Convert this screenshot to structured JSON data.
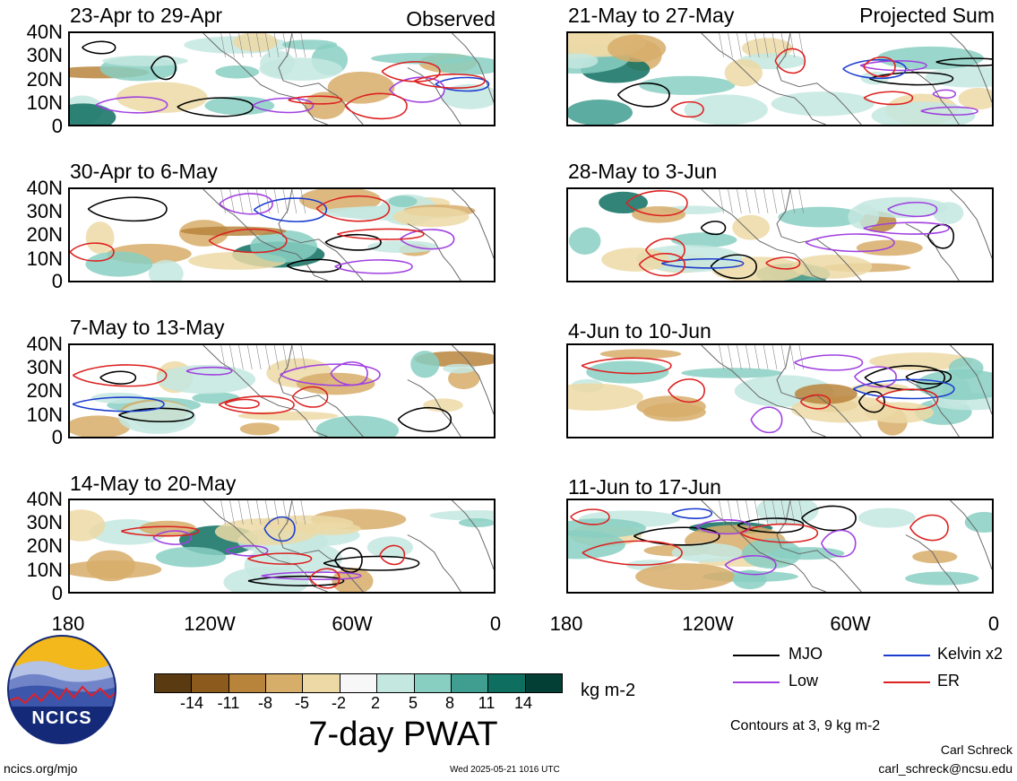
{
  "panels": [
    {
      "title": "23-Apr to 29-Apr",
      "right_label": "Observed"
    },
    {
      "title": "21-May to 27-May",
      "right_label": "Projected Sum"
    },
    {
      "title": "30-Apr to 6-May",
      "right_label": ""
    },
    {
      "title": "28-May to 3-Jun",
      "right_label": ""
    },
    {
      "title": "7-May to 13-May",
      "right_label": ""
    },
    {
      "title": "4-Jun to 10-Jun",
      "right_label": ""
    },
    {
      "title": "14-May to 20-May",
      "right_label": ""
    },
    {
      "title": "11-Jun to 17-Jun",
      "right_label": ""
    }
  ],
  "y_ticks": [
    "40N",
    "30N",
    "20N",
    "10N",
    "0"
  ],
  "x_ticks_left": [
    "180",
    "120W",
    "60W",
    "0"
  ],
  "x_ticks_right": [
    "180",
    "120W",
    "60W",
    "0"
  ],
  "colorbar": {
    "title": "7-day PWAT",
    "units": "kg m-2",
    "labels": [
      "-14",
      "-11",
      "-8",
      "-5",
      "-2",
      "2",
      "5",
      "8",
      "11",
      "14"
    ],
    "colors": [
      "#5a3a10",
      "#8c5a1c",
      "#b8843c",
      "#d7ad6a",
      "#ecd9a6",
      "#f7f7f7",
      "#c4e8e0",
      "#88cfc2",
      "#3f9e90",
      "#0e6e60",
      "#043f35"
    ]
  },
  "legend": {
    "items": [
      {
        "label": "MJO",
        "color": "#000000"
      },
      {
        "label": "Kelvin x2",
        "color": "#1a3ccf"
      },
      {
        "label": "Low",
        "color": "#a040e0"
      },
      {
        "label": "ER",
        "color": "#dd2020"
      }
    ],
    "contours_note": "Contours at 3, 9 kg m-2"
  },
  "logo": {
    "text": "NCICS"
  },
  "footer": {
    "url": "ncics.org/mjo",
    "timestamp": "Wed 2025-05-21 1016 UTC",
    "author": "Carl Schreck",
    "email": "carl_schreck@ncsu.edu"
  }
}
